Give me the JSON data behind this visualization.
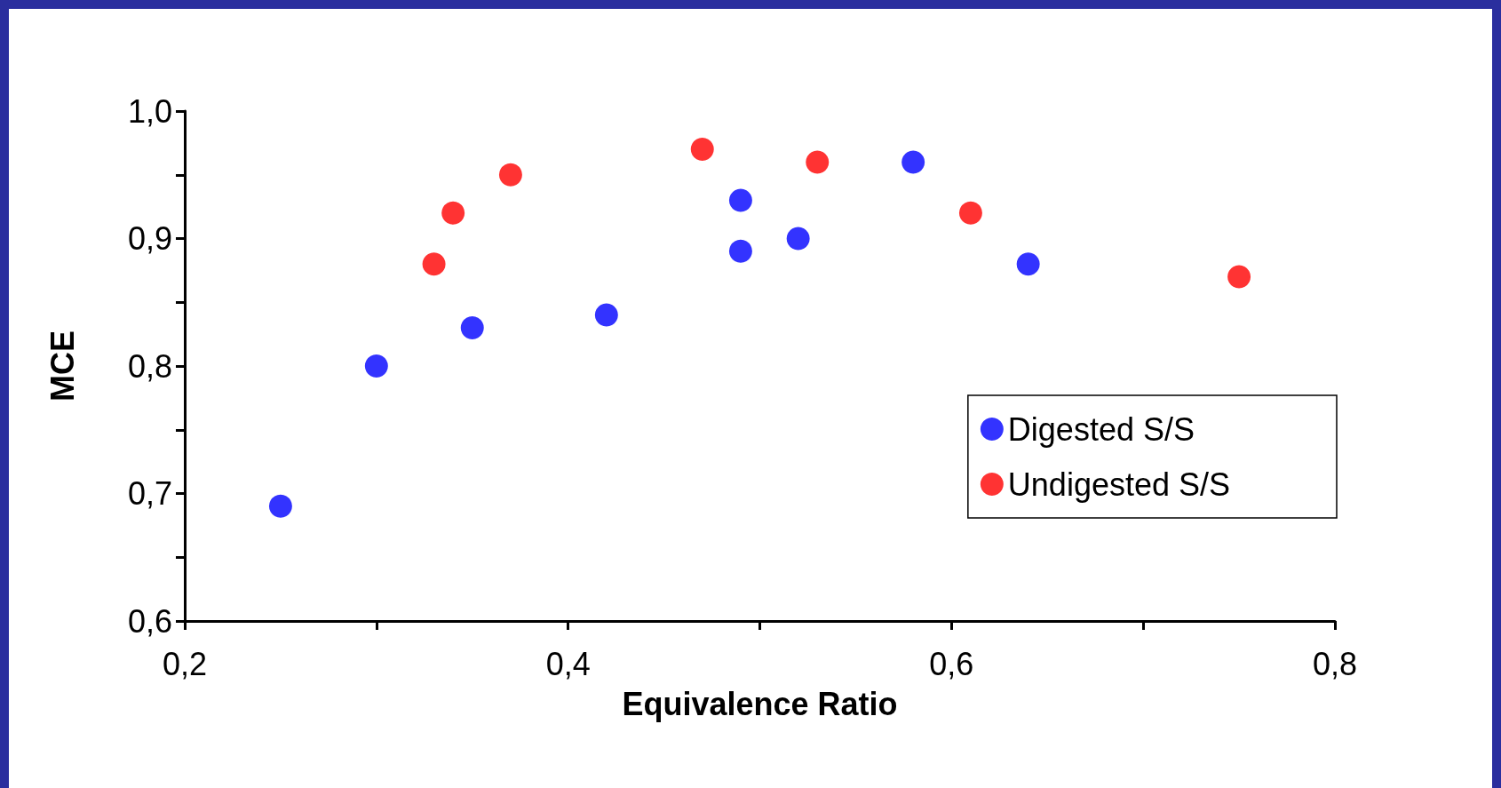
{
  "chart_data": {
    "type": "scatter",
    "xlabel": "Equivalence Ratio",
    "ylabel": "MCE",
    "series": [
      {
        "name": "Digested S/S",
        "color": "#0000ff",
        "x": [
          0.25,
          0.3,
          0.35,
          0.42,
          0.49,
          0.49,
          0.52,
          0.58,
          0.64
        ],
        "values": [
          0.69,
          0.8,
          0.83,
          0.84,
          0.93,
          0.89,
          0.9,
          0.96,
          0.88
        ]
      },
      {
        "name": "Undigested S/S",
        "color": "#ff0000",
        "x": [
          0.33,
          0.34,
          0.37,
          0.47,
          0.53,
          0.61,
          0.75
        ],
        "values": [
          0.88,
          0.92,
          0.95,
          0.97,
          0.96,
          0.92,
          0.87
        ]
      }
    ],
    "xlim": [
      0.2,
      0.8
    ],
    "xticks": [
      {
        "value": 0.2,
        "label": "0,2"
      },
      {
        "value": 0.3,
        "label": null
      },
      {
        "value": 0.4,
        "label": "0,4"
      },
      {
        "value": 0.5,
        "label": null
      },
      {
        "value": 0.6,
        "label": "0,6"
      },
      {
        "value": 0.7,
        "label": null
      },
      {
        "value": 0.8,
        "label": "0,8"
      }
    ],
    "ylim": [
      0.6,
      1.0
    ],
    "yticks": [
      {
        "value": 0.6,
        "label": "0,6"
      },
      {
        "value": 0.65,
        "label": null
      },
      {
        "value": 0.7,
        "label": "0,7"
      },
      {
        "value": 0.75,
        "label": null
      },
      {
        "value": 0.8,
        "label": "0,8"
      },
      {
        "value": 0.85,
        "label": null
      },
      {
        "value": 0.9,
        "label": "0,9"
      },
      {
        "value": 0.95,
        "label": null
      },
      {
        "value": 1.0,
        "label": "1,0"
      }
    ],
    "marker": "circle",
    "grid": false,
    "legend": "bottom right"
  }
}
